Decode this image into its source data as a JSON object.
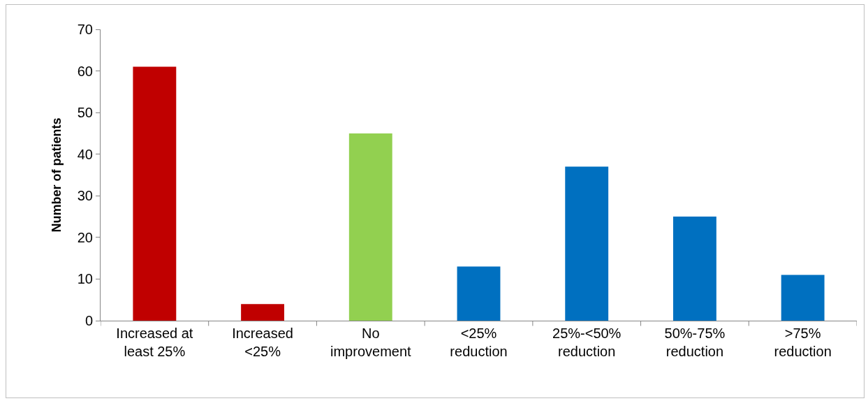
{
  "chart_data": {
    "type": "bar",
    "ylabel": "Number of patients",
    "categories": [
      "Increased at least 25%",
      "Increased <25%",
      "No improvement",
      "<25% reduction",
      "25%-<50% reduction",
      "50%-75% reduction",
      ">75% reduction"
    ],
    "values": [
      61,
      4,
      45,
      13,
      37,
      25,
      11
    ],
    "colors": [
      "#c00000",
      "#c00000",
      "#92d050",
      "#0070c0",
      "#0070c0",
      "#0070c0",
      "#0070c0"
    ],
    "ylim": [
      0,
      70
    ],
    "yticks": [
      0,
      10,
      20,
      30,
      40,
      50,
      60,
      70
    ],
    "grid": false
  }
}
